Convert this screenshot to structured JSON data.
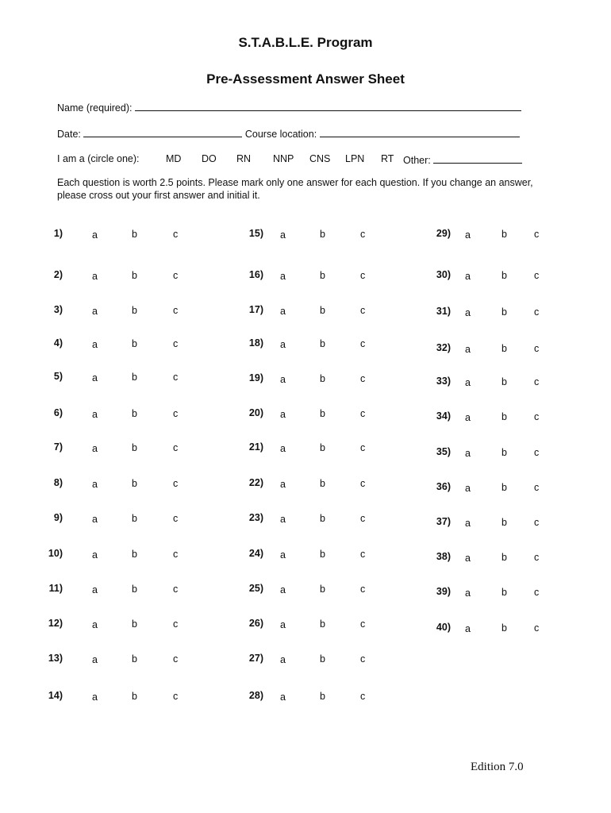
{
  "header": {
    "program_title": "S.T.A.B.L.E. Program",
    "sheet_title": "Pre-Assessment Answer Sheet"
  },
  "form": {
    "name_label": "Name (required):",
    "date_label": "Date:",
    "course_location_label": "Course location:",
    "role_label": "I am a (circle one):",
    "roles": [
      "MD",
      "DO",
      "RN",
      "NNP",
      "CNS",
      "LPN",
      "RT"
    ],
    "other_label": "Other:"
  },
  "instructions": "Each question is worth 2.5 points. Please mark only one answer for each question. If you change an answer, please cross out your first answer and initial it.",
  "options": [
    "a",
    "b",
    "c"
  ],
  "questions": [
    "1)",
    "2)",
    "3)",
    "4)",
    "5)",
    "6)",
    "7)",
    "8)",
    "9)",
    "10)",
    "11)",
    "12)",
    "13)",
    "14)",
    "15)",
    "16)",
    "17)",
    "18)",
    "19)",
    "20)",
    "21)",
    "22)",
    "23)",
    "24)",
    "25)",
    "26)",
    "27)",
    "28)",
    "29)",
    "30)",
    "31)",
    "32)",
    "33)",
    "34)",
    "35)",
    "36)",
    "37)",
    "38)",
    "39)",
    "40)"
  ],
  "footer": {
    "edition": "Edition 7.0"
  }
}
